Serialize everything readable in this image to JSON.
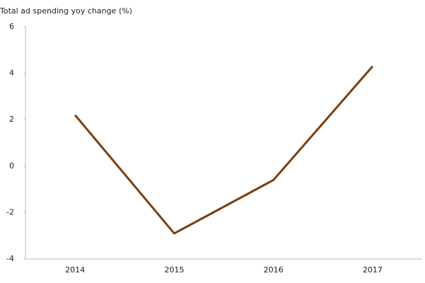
{
  "chart_data": {
    "type": "line",
    "title": "Total ad spending yoy change (%)",
    "categories": [
      "2014",
      "2015",
      "2016",
      "2017"
    ],
    "values": [
      2.2,
      -2.9,
      -0.6,
      4.3
    ],
    "color": "#7b3f12",
    "ylim": [
      -4,
      6
    ],
    "yticks": [
      -4,
      -2,
      0,
      2,
      4,
      6
    ],
    "grid": false
  }
}
